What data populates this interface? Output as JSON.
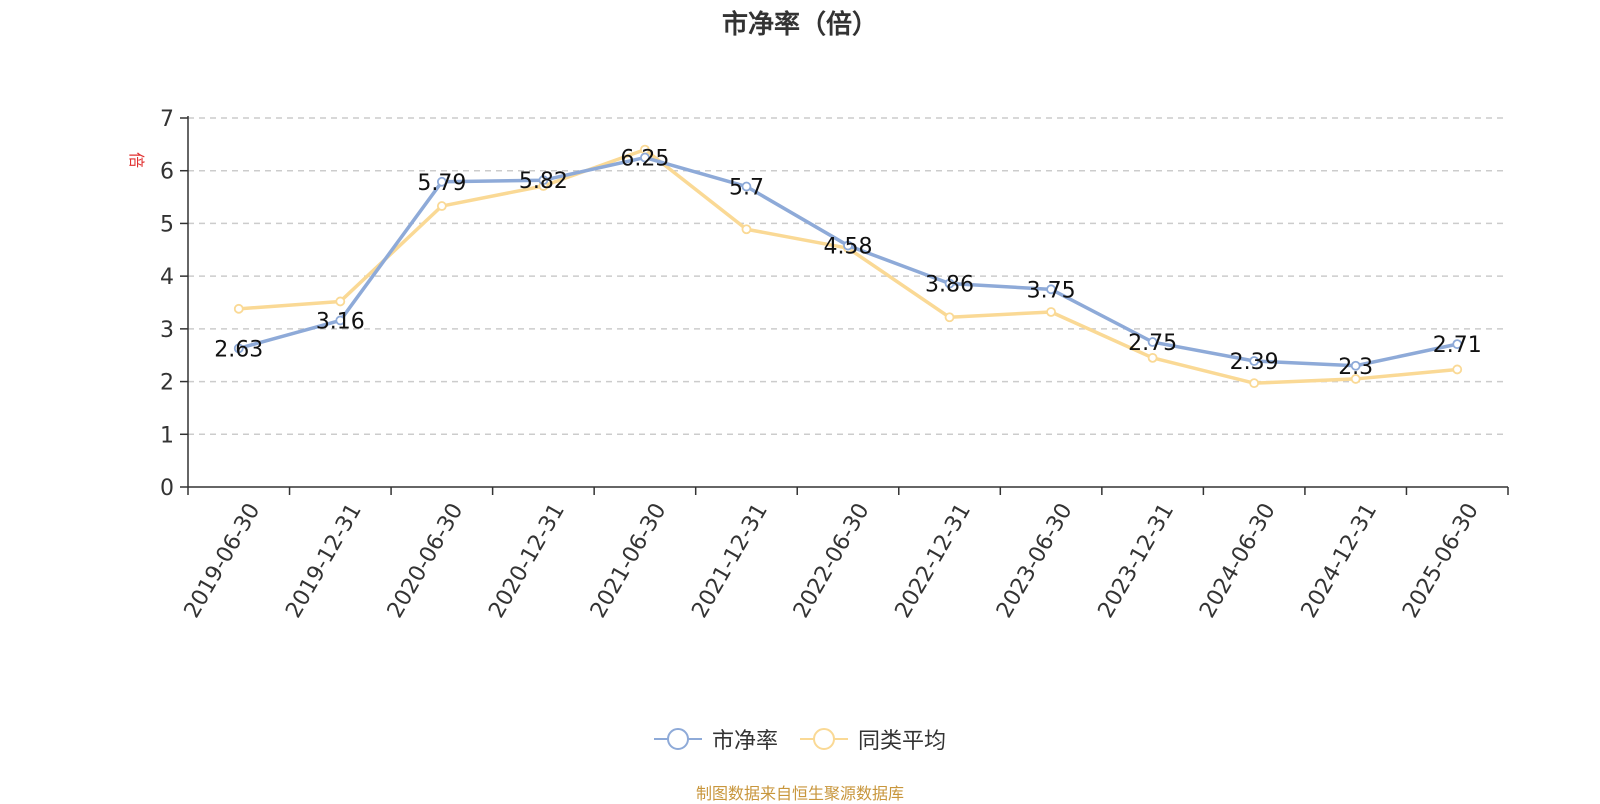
{
  "chart_data": {
    "type": "line",
    "title": "市净率（倍）",
    "ylabel": "倍",
    "xlabel": "",
    "categories": [
      "2019-06-30",
      "2019-12-31",
      "2020-06-30",
      "2020-12-31",
      "2021-06-30",
      "2021-12-31",
      "2022-06-30",
      "2022-12-31",
      "2023-06-30",
      "2023-12-31",
      "2024-06-30",
      "2024-12-31",
      "2025-06-30"
    ],
    "ylim": [
      0,
      7
    ],
    "yticks": [
      "0",
      "1",
      "2",
      "3",
      "4",
      "5",
      "6",
      "7"
    ],
    "grid": true,
    "legend_position": "bottom-center",
    "series": [
      {
        "name": "市净率",
        "color": "#8eaad8",
        "values": [
          2.63,
          3.16,
          5.79,
          5.82,
          6.25,
          5.7,
          4.58,
          3.86,
          3.75,
          2.75,
          2.39,
          2.3,
          2.71
        ],
        "data_labels": [
          "2.63",
          "3.16",
          "5.79",
          "5.82",
          "6.25",
          "5.7",
          "4.58",
          "3.86",
          "3.75",
          "2.75",
          "2.39",
          "2.3",
          "2.71"
        ]
      },
      {
        "name": "同类平均",
        "color": "#fad995",
        "values": [
          3.38,
          3.52,
          5.33,
          5.71,
          6.4,
          4.89,
          4.53,
          3.22,
          3.32,
          2.45,
          1.97,
          2.05,
          2.23
        ]
      }
    ]
  },
  "source_note": "制图数据来自恒生聚源数据库"
}
